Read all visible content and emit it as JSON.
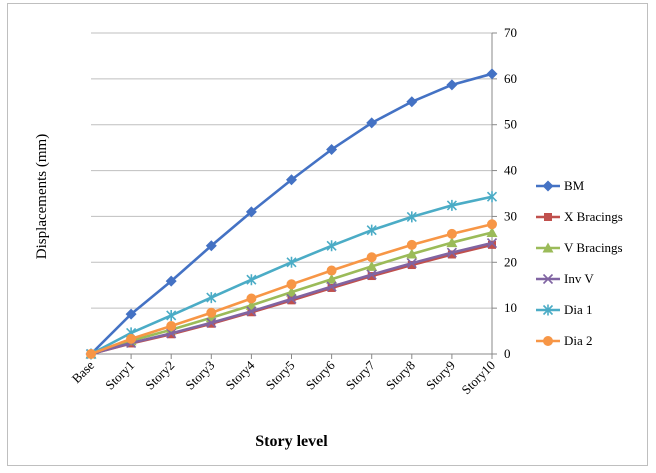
{
  "chart_data": {
    "type": "line",
    "title": "",
    "xlabel": "Story level",
    "ylabel": "Displacements (mm)",
    "ylim": [
      0,
      70
    ],
    "yticks": [
      0,
      10,
      20,
      30,
      40,
      50,
      60,
      70
    ],
    "y_axis_side": "right",
    "grid": "horizontal",
    "legend_position": "right",
    "categories": [
      "Base",
      "Story1",
      "Story2",
      "Story3",
      "Story4",
      "Story5",
      "Story6",
      "Story7",
      "Story8",
      "Story9",
      "Story10"
    ],
    "series": [
      {
        "name": "BM",
        "color": "#4472c4",
        "marker": "diamond",
        "values": [
          0,
          8.7,
          15.9,
          23.6,
          31.0,
          38.0,
          44.6,
          50.4,
          55.0,
          58.7,
          61.1
        ]
      },
      {
        "name": "X Bracings",
        "color": "#c0504d",
        "marker": "square",
        "values": [
          0,
          2.3,
          4.3,
          6.6,
          9.1,
          11.7,
          14.4,
          17.0,
          19.4,
          21.7,
          23.8
        ]
      },
      {
        "name": "V Bracings",
        "color": "#9bbb59",
        "marker": "triangle",
        "values": [
          0,
          2.9,
          5.3,
          7.9,
          10.6,
          13.5,
          16.3,
          19.1,
          21.8,
          24.3,
          26.5
        ]
      },
      {
        "name": "Inv V",
        "color": "#8064a2",
        "marker": "x",
        "values": [
          0,
          2.4,
          4.5,
          6.8,
          9.3,
          12.0,
          14.7,
          17.3,
          19.8,
          22.1,
          24.2
        ]
      },
      {
        "name": "Dia 1",
        "color": "#4bacc6",
        "marker": "star",
        "values": [
          0,
          4.6,
          8.4,
          12.3,
          16.2,
          20.0,
          23.6,
          27.0,
          29.9,
          32.4,
          34.3
        ]
      },
      {
        "name": "Dia 2",
        "color": "#f79646",
        "marker": "circle",
        "values": [
          0,
          3.3,
          6.1,
          9.0,
          12.1,
          15.2,
          18.2,
          21.1,
          23.8,
          26.2,
          28.3
        ]
      }
    ]
  }
}
